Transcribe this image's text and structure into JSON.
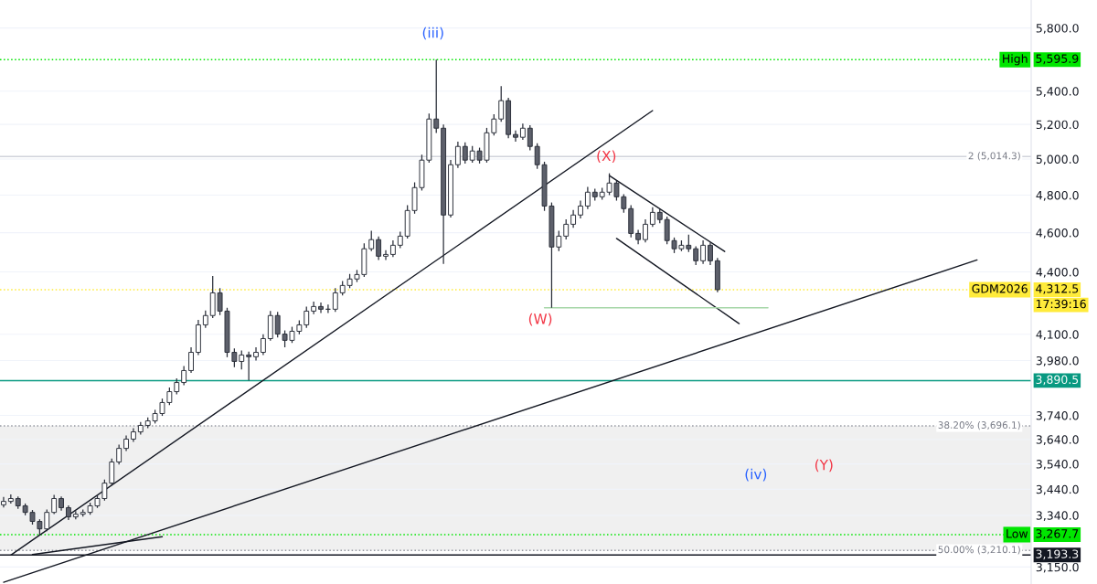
{
  "chart_data": {
    "type": "candlestick",
    "categories": [
      null,
      null,
      null,
      null,
      null,
      null,
      null,
      null,
      null,
      null,
      null,
      null,
      null,
      null,
      null,
      null,
      null,
      null,
      null,
      null,
      null,
      null,
      null,
      null,
      null,
      null,
      null,
      null,
      null,
      null,
      null,
      null,
      null,
      null,
      null,
      null,
      null,
      null,
      null,
      null,
      null,
      null,
      null,
      null,
      null,
      null,
      null,
      null,
      null,
      null,
      null,
      null,
      null,
      null,
      null,
      null,
      null,
      null,
      null,
      null,
      null,
      null,
      null,
      null,
      null,
      null,
      null,
      null,
      null,
      null,
      null,
      null,
      null,
      null,
      null,
      null,
      null,
      null,
      null,
      null,
      null,
      null,
      null,
      null,
      null,
      null,
      null,
      null,
      null,
      null,
      null,
      null,
      null,
      null,
      null,
      null,
      null,
      null,
      null,
      null,
      null,
      null,
      null,
      null,
      null,
      null,
      null,
      null,
      null,
      null,
      null,
      null,
      null,
      null,
      null,
      null,
      null,
      null,
      null,
      null,
      null,
      null,
      null,
      null,
      null,
      null,
      null,
      null,
      null,
      null,
      null,
      null,
      null,
      null,
      null,
      null,
      null,
      null,
      null,
      null,
      null,
      null,
      null
    ],
    "ohlc": [
      [
        3380,
        3410,
        3370,
        3393
      ],
      [
        3393,
        3420,
        3385,
        3404
      ],
      [
        3404,
        3412,
        3365,
        3376
      ],
      [
        3376,
        3385,
        3340,
        3351
      ],
      [
        3351,
        3360,
        3305,
        3317
      ],
      [
        3317,
        3325,
        3267.7,
        3289
      ],
      [
        3289,
        3362,
        3280,
        3351
      ],
      [
        3351,
        3418,
        3345,
        3404
      ],
      [
        3404,
        3412,
        3358,
        3369
      ],
      [
        3369,
        3378,
        3322,
        3334
      ],
      [
        3334,
        3356,
        3325,
        3344
      ],
      [
        3344,
        3362,
        3335,
        3351
      ],
      [
        3351,
        3388,
        3342,
        3376
      ],
      [
        3376,
        3416,
        3368,
        3404
      ],
      [
        3404,
        3478,
        3396,
        3464
      ],
      [
        3464,
        3562,
        3455,
        3548
      ],
      [
        3548,
        3618,
        3538,
        3603
      ],
      [
        3603,
        3656,
        3592,
        3641
      ],
      [
        3641,
        3686,
        3630,
        3671
      ],
      [
        3671,
        3712,
        3660,
        3698
      ],
      [
        3698,
        3732,
        3686,
        3717
      ],
      [
        3717,
        3764,
        3706,
        3748
      ],
      [
        3748,
        3812,
        3738,
        3795
      ],
      [
        3795,
        3860,
        3784,
        3842
      ],
      [
        3842,
        3900,
        3830,
        3882
      ],
      [
        3882,
        3955,
        3870,
        3935
      ],
      [
        3935,
        4040,
        3925,
        4017
      ],
      [
        4017,
        4168,
        4005,
        4144
      ],
      [
        4144,
        4212,
        4130,
        4188
      ],
      [
        4188,
        4380,
        4176,
        4297
      ],
      [
        4297,
        4320,
        4190,
        4209
      ],
      [
        4209,
        4225,
        3995,
        4017
      ],
      [
        4017,
        4035,
        3950,
        3976
      ],
      [
        3976,
        4025,
        3940,
        4005
      ],
      [
        4005,
        4020,
        3891,
        3997
      ],
      [
        3997,
        4040,
        3980,
        4017
      ],
      [
        4017,
        4100,
        4005,
        4080
      ],
      [
        4080,
        4210,
        4070,
        4188
      ],
      [
        4188,
        4205,
        4085,
        4101
      ],
      [
        4101,
        4118,
        4040,
        4072
      ],
      [
        4072,
        4135,
        4060,
        4114
      ],
      [
        4114,
        4165,
        4100,
        4144
      ],
      [
        4144,
        4230,
        4130,
        4209
      ],
      [
        4209,
        4255,
        4195,
        4231
      ],
      [
        4231,
        4250,
        4200,
        4218
      ],
      [
        4218,
        4240,
        4200,
        4218
      ],
      [
        4218,
        4320,
        4205,
        4297
      ],
      [
        4297,
        4355,
        4285,
        4333
      ],
      [
        4333,
        4390,
        4320,
        4365
      ],
      [
        4365,
        4410,
        4350,
        4387
      ],
      [
        4387,
        4545,
        4375,
        4517
      ],
      [
        4517,
        4610,
        4505,
        4564
      ],
      [
        4564,
        4580,
        4460,
        4479
      ],
      [
        4479,
        4510,
        4460,
        4488
      ],
      [
        4488,
        4560,
        4475,
        4535
      ],
      [
        4535,
        4605,
        4520,
        4582
      ],
      [
        4582,
        4745,
        4570,
        4717
      ],
      [
        4717,
        4870,
        4700,
        4841
      ],
      [
        4841,
        5025,
        4825,
        4994
      ],
      [
        4994,
        5265,
        4980,
        5232
      ],
      [
        5232,
        5595.9,
        5150,
        5178
      ],
      [
        5178,
        5200,
        4440,
        4693
      ],
      [
        4693,
        4995,
        4680,
        4968
      ],
      [
        4968,
        5100,
        4950,
        5072
      ],
      [
        5072,
        5095,
        4975,
        4994
      ],
      [
        4994,
        5075,
        4980,
        5046
      ],
      [
        5046,
        5065,
        4975,
        4994
      ],
      [
        4994,
        5180,
        4980,
        5151
      ],
      [
        5151,
        5260,
        5135,
        5232
      ],
      [
        5232,
        5430,
        5215,
        5342
      ],
      [
        5342,
        5360,
        5120,
        5141
      ],
      [
        5141,
        5165,
        5100,
        5125
      ],
      [
        5125,
        5205,
        5110,
        5178
      ],
      [
        5178,
        5195,
        5050,
        5072
      ],
      [
        5072,
        5090,
        4945,
        4968
      ],
      [
        4968,
        4985,
        4715,
        4741
      ],
      [
        4741,
        4760,
        4225,
        4526
      ],
      [
        4526,
        4610,
        4505,
        4582
      ],
      [
        4582,
        4670,
        4565,
        4644
      ],
      [
        4644,
        4720,
        4625,
        4693
      ],
      [
        4693,
        4770,
        4675,
        4741
      ],
      [
        4741,
        4845,
        4725,
        4816
      ],
      [
        4816,
        4835,
        4770,
        4791
      ],
      [
        4791,
        4840,
        4775,
        4816
      ],
      [
        4816,
        4920,
        4800,
        4866
      ],
      [
        4866,
        4880,
        4770,
        4791
      ],
      [
        4791,
        4805,
        4705,
        4727
      ],
      [
        4727,
        4745,
        4575,
        4596
      ],
      [
        4596,
        4615,
        4540,
        4564
      ],
      [
        4564,
        4670,
        4550,
        4644
      ],
      [
        4644,
        4735,
        4630,
        4707
      ],
      [
        4707,
        4725,
        4650,
        4669
      ],
      [
        4669,
        4685,
        4540,
        4559
      ],
      [
        4559,
        4575,
        4495,
        4517
      ],
      [
        4517,
        4560,
        4505,
        4535
      ],
      [
        4535,
        4590,
        4500,
        4517
      ],
      [
        4517,
        4530,
        4435,
        4456
      ],
      [
        4456,
        4560,
        4440,
        4535
      ],
      [
        4535,
        4550,
        4435,
        4456
      ],
      [
        4456,
        4470,
        4300,
        4312.5
      ],
      null,
      null,
      null,
      null,
      null,
      null,
      null,
      null,
      null,
      null,
      null,
      null,
      null,
      null,
      null,
      null,
      null,
      null,
      null,
      null,
      null,
      null,
      null,
      null,
      null,
      null,
      null,
      null,
      null,
      null,
      null,
      null,
      null,
      null,
      null,
      null,
      null,
      null,
      null,
      null,
      null,
      null,
      null
    ],
    "series": [
      {
        "type": "line",
        "color": "#131722",
        "values": [
          null,
          3193,
          null,
          null,
          null,
          null,
          null,
          null,
          null,
          null,
          null,
          null,
          null,
          null,
          null,
          null,
          null,
          null,
          null,
          null,
          null,
          null,
          null,
          null,
          null,
          null,
          null,
          null,
          null,
          null,
          null,
          null,
          null,
          null,
          null,
          null,
          null,
          null,
          null,
          null,
          null,
          null,
          null,
          null,
          null,
          null,
          null,
          null,
          null,
          null,
          null,
          null,
          null,
          null,
          null,
          null,
          null,
          null,
          null,
          null,
          null,
          null,
          null,
          null,
          null,
          null,
          null,
          null,
          null,
          null,
          null,
          null,
          null,
          null,
          null,
          null,
          null,
          null,
          null,
          null,
          null,
          null,
          null,
          null,
          null,
          null,
          null,
          null,
          null,
          null,
          5282,
          null,
          null,
          null,
          null,
          null,
          null,
          null,
          null,
          null,
          null,
          null,
          null,
          null,
          null,
          null,
          null,
          null,
          null,
          null,
          null,
          null,
          null,
          null,
          null,
          null,
          null,
          null,
          null,
          null,
          null,
          null,
          null,
          null,
          null,
          null,
          null,
          null,
          null,
          null,
          null,
          null,
          null,
          null,
          null,
          null,
          null,
          null,
          null,
          null,
          null,
          null,
          null
        ]
      },
      {
        "type": "line",
        "color": "#131722",
        "values": [
          3096,
          null,
          null,
          null,
          null,
          null,
          null,
          null,
          null,
          null,
          null,
          null,
          null,
          null,
          null,
          null,
          null,
          null,
          null,
          null,
          null,
          null,
          null,
          null,
          null,
          null,
          null,
          null,
          null,
          null,
          null,
          null,
          null,
          null,
          null,
          null,
          null,
          null,
          null,
          null,
          null,
          null,
          null,
          null,
          null,
          null,
          null,
          null,
          null,
          null,
          null,
          null,
          null,
          null,
          null,
          null,
          null,
          null,
          null,
          null,
          null,
          null,
          null,
          null,
          null,
          null,
          null,
          null,
          null,
          null,
          null,
          null,
          null,
          null,
          null,
          null,
          null,
          null,
          null,
          null,
          null,
          null,
          null,
          null,
          null,
          null,
          null,
          null,
          null,
          null,
          null,
          null,
          null,
          null,
          null,
          null,
          null,
          null,
          null,
          null,
          null,
          null,
          null,
          null,
          null,
          null,
          null,
          null,
          null,
          null,
          null,
          null,
          null,
          null,
          null,
          null,
          null,
          null,
          null,
          null,
          null,
          null,
          null,
          null,
          null,
          null,
          null,
          null,
          null,
          null,
          null,
          null,
          null,
          null,
          null,
          4460,
          null,
          null,
          null,
          null,
          null,
          null,
          null
        ]
      },
      {
        "type": "line",
        "color": "#131722",
        "values": [
          null,
          null,
          null,
          null,
          3195,
          null,
          null,
          null,
          null,
          null,
          null,
          null,
          null,
          null,
          null,
          null,
          null,
          null,
          null,
          null,
          null,
          null,
          3260,
          null,
          null,
          null,
          null,
          null,
          null,
          null,
          null,
          null,
          null,
          null,
          null,
          null,
          null,
          null,
          null,
          null,
          null,
          null,
          null,
          null,
          null,
          null,
          null,
          null,
          null,
          null,
          null,
          null,
          null,
          null,
          null,
          null,
          null,
          null,
          null,
          null,
          null,
          null,
          null,
          null,
          null,
          null,
          null,
          null,
          null,
          null,
          null,
          null,
          null,
          null,
          null,
          null,
          null,
          null,
          null,
          null,
          null,
          null,
          null,
          null,
          null,
          null,
          null,
          null,
          null,
          null,
          null,
          null,
          null,
          null,
          null,
          null,
          null,
          null,
          null,
          null,
          null,
          null,
          null,
          null,
          null,
          null,
          null,
          null,
          null,
          null,
          null,
          null,
          null,
          null,
          null,
          null,
          null,
          null,
          null,
          null,
          null,
          null,
          null,
          null,
          null,
          null,
          null,
          null,
          null,
          null,
          null,
          null,
          null,
          null,
          null,
          null,
          null,
          null,
          null,
          null,
          null,
          null,
          null
        ]
      },
      {
        "type": "line",
        "color": "#131722",
        "values": [
          null,
          null,
          null,
          null,
          null,
          null,
          null,
          null,
          null,
          null,
          null,
          null,
          null,
          null,
          null,
          null,
          null,
          null,
          null,
          null,
          null,
          null,
          null,
          null,
          null,
          null,
          null,
          null,
          null,
          null,
          null,
          null,
          null,
          null,
          null,
          null,
          null,
          null,
          null,
          null,
          null,
          null,
          null,
          null,
          null,
          null,
          null,
          null,
          null,
          null,
          null,
          null,
          null,
          null,
          null,
          null,
          null,
          null,
          null,
          null,
          null,
          null,
          null,
          null,
          null,
          null,
          null,
          null,
          null,
          null,
          null,
          null,
          null,
          null,
          null,
          null,
          null,
          null,
          null,
          null,
          null,
          null,
          null,
          null,
          4907,
          null,
          null,
          null,
          null,
          null,
          null,
          null,
          null,
          null,
          null,
          null,
          null,
          null,
          null,
          null,
          4503,
          null,
          null,
          null,
          null,
          null,
          null,
          null,
          null,
          null,
          null,
          null,
          null,
          null,
          null,
          null,
          null,
          null,
          null,
          null,
          null,
          null,
          null,
          null,
          null,
          null,
          null,
          null,
          null,
          null,
          null,
          null,
          null,
          null,
          null,
          null,
          null,
          null,
          null,
          null,
          null,
          null,
          null
        ]
      },
      {
        "type": "line",
        "color": "#131722",
        "values": [
          null,
          null,
          null,
          null,
          null,
          null,
          null,
          null,
          null,
          null,
          null,
          null,
          null,
          null,
          null,
          null,
          null,
          null,
          null,
          null,
          null,
          null,
          null,
          null,
          null,
          null,
          null,
          null,
          null,
          null,
          null,
          null,
          null,
          null,
          null,
          null,
          null,
          null,
          null,
          null,
          null,
          null,
          null,
          null,
          null,
          null,
          null,
          null,
          null,
          null,
          null,
          null,
          null,
          null,
          null,
          null,
          null,
          null,
          null,
          null,
          null,
          null,
          null,
          null,
          null,
          null,
          null,
          null,
          null,
          null,
          null,
          null,
          null,
          null,
          null,
          null,
          null,
          null,
          null,
          null,
          null,
          null,
          null,
          null,
          null,
          4570,
          null,
          null,
          null,
          null,
          null,
          null,
          null,
          null,
          null,
          null,
          null,
          null,
          null,
          null,
          null,
          null,
          4150,
          null,
          null,
          null,
          null,
          null,
          null,
          null,
          null,
          null,
          null,
          null,
          null,
          null,
          null,
          null,
          null,
          null,
          null,
          null,
          null,
          null,
          null,
          null,
          null,
          null,
          null,
          null,
          null,
          null,
          null,
          null,
          null,
          null,
          null,
          null,
          null,
          null,
          null,
          null,
          null
        ]
      },
      {
        "type": "line",
        "color": "#a5d6a7",
        "values": [
          null,
          null,
          null,
          null,
          null,
          null,
          null,
          null,
          null,
          null,
          null,
          null,
          null,
          null,
          null,
          null,
          null,
          null,
          null,
          null,
          null,
          null,
          null,
          null,
          null,
          null,
          null,
          null,
          null,
          null,
          null,
          null,
          null,
          null,
          null,
          null,
          null,
          null,
          null,
          null,
          null,
          null,
          null,
          null,
          null,
          null,
          null,
          null,
          null,
          null,
          null,
          null,
          null,
          null,
          null,
          null,
          null,
          null,
          null,
          null,
          null,
          null,
          null,
          null,
          null,
          null,
          null,
          null,
          null,
          null,
          null,
          null,
          null,
          null,
          null,
          4225,
          null,
          null,
          null,
          null,
          null,
          null,
          null,
          null,
          null,
          null,
          null,
          null,
          null,
          null,
          null,
          null,
          null,
          null,
          null,
          null,
          null,
          null,
          null,
          null,
          null,
          null,
          null,
          null,
          null,
          null,
          4225,
          null,
          null,
          null,
          null,
          null,
          null,
          null,
          null,
          null,
          null,
          null,
          null,
          null,
          null,
          null,
          null,
          null,
          null,
          null,
          null,
          null,
          null,
          null,
          null,
          null,
          null,
          null,
          null,
          null,
          null,
          null,
          null,
          null,
          null,
          null,
          null
        ]
      }
    ],
    "ref_lines": [
      {
        "axis": "y",
        "value": 5595.9,
        "label": "High",
        "color": "#00e600",
        "line_style": "dotted"
      },
      {
        "axis": "y",
        "value": 4312.5,
        "label": "GDM2026",
        "color": "#ffeb3b",
        "line_style": "dotted"
      },
      {
        "axis": "y",
        "value": 3890.5,
        "color": "#089981",
        "line_style": "solid"
      },
      {
        "axis": "y",
        "value": 3267.7,
        "label": "Low",
        "color": "#00e600",
        "line_style": "dotted"
      },
      {
        "axis": "y",
        "value": 3193.3,
        "color": "#131722",
        "line_style": "solid"
      },
      {
        "axis": "y",
        "value": 5014.3,
        "label": "2 (5,014.3)",
        "color": "#d1d4dc",
        "line_style": "solid"
      },
      {
        "axis": "y",
        "value": 3696.1,
        "label": "38.20% (3,696.1)",
        "color": "#9598a1",
        "line_style": "dotted"
      },
      {
        "axis": "y",
        "value": 3210.1,
        "label": "50.00% (3,210.1)",
        "color": "#9598a1",
        "line_style": "dotted"
      }
    ],
    "bands": [
      {
        "axis": "y",
        "from": 3210.1,
        "to": 3696.1,
        "color": "#f0f0f0"
      }
    ],
    "annotations": [
      "(iii)",
      "(X)",
      "(W)",
      "(iv)",
      "(Y)",
      "17:39:16",
      "5,595.9",
      "4,312.5",
      "3,890.5",
      "3,267.7",
      "3,193.3"
    ],
    "log": "y",
    "ylim": [
      3090,
      5987
    ],
    "yticks": [
      {
        "value": 5800,
        "label": "5,800.0"
      },
      {
        "value": 5400,
        "label": "5,400.0"
      },
      {
        "value": 5200,
        "label": "5,200.0"
      },
      {
        "value": 5000,
        "label": "5,000.0"
      },
      {
        "value": 4800,
        "label": "4,800.0"
      },
      {
        "value": 4600,
        "label": "4,600.0"
      },
      {
        "value": 4400,
        "label": "4,400.0"
      },
      {
        "value": 4100,
        "label": "4,100.0"
      },
      {
        "value": 3980,
        "label": "3,980.0"
      },
      {
        "value": 3740,
        "label": "3,740.0"
      },
      {
        "value": 3640,
        "label": "3,640.0"
      },
      {
        "value": 3540,
        "label": "3,540.0"
      },
      {
        "value": 3440,
        "label": "3,440.0"
      },
      {
        "value": 3340,
        "label": "3,340.0"
      },
      {
        "value": 3150,
        "label": "3,150.0"
      }
    ],
    "tick_labels": "y",
    "grid": "y"
  }
}
